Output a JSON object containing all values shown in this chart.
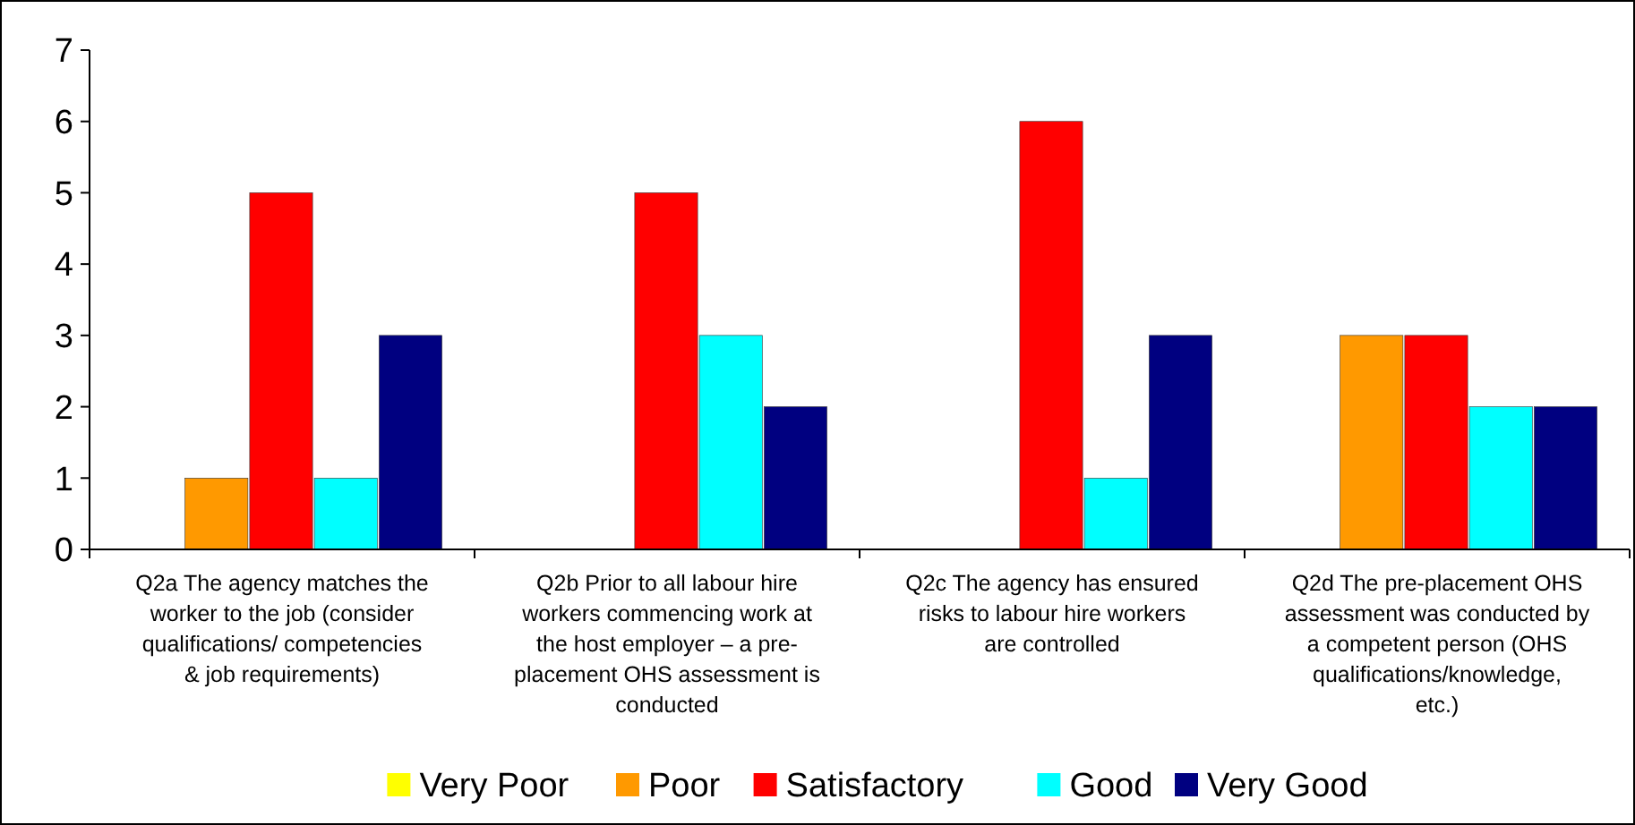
{
  "chart_data": {
    "type": "bar",
    "categories": [
      "Q2a The agency matches the worker to the job (consider qualifications/ competencies & job requirements)",
      "Q2b Prior to all labour hire workers commencing work at the host employer – a pre-placement OHS assessment is conducted",
      "Q2c The agency has ensured risks to labour hire workers are controlled",
      "Q2d The pre-placement OHS assessment was conducted by a competent person (OHS qualifications/knowledge, etc.)"
    ],
    "series": [
      {
        "name": "Very Poor",
        "color": "#ffff00",
        "values": [
          0,
          0,
          0,
          0
        ]
      },
      {
        "name": "Poor",
        "color": "#ff9900",
        "values": [
          1,
          0,
          0,
          3
        ]
      },
      {
        "name": "Satisfactory",
        "color": "#ff0000",
        "values": [
          5,
          5,
          6,
          3
        ]
      },
      {
        "name": "Good",
        "color": "#00ffff",
        "values": [
          1,
          3,
          1,
          2
        ]
      },
      {
        "name": "Very Good",
        "color": "#000080",
        "values": [
          3,
          2,
          3,
          2
        ]
      }
    ],
    "ylim": [
      0,
      7
    ],
    "yticks": [
      0,
      1,
      2,
      3,
      4,
      5,
      6,
      7
    ],
    "grid": false,
    "legend": "bottom"
  }
}
